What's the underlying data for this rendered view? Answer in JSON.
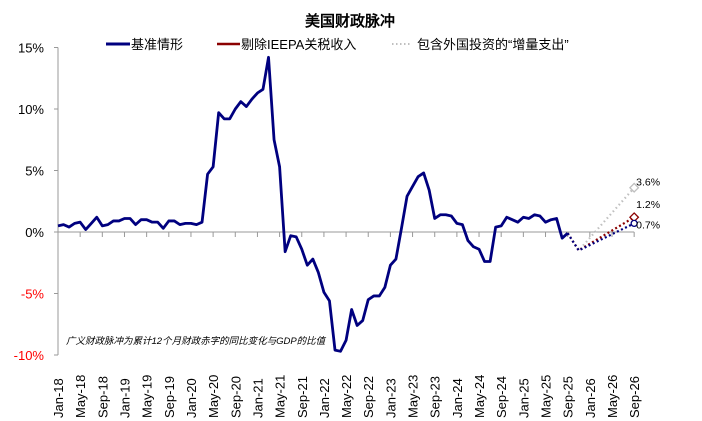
{
  "chart_data": {
    "type": "line",
    "title": "美国财政脉冲",
    "annotation": "广义财政脉冲为累计12个月财政赤字的同比变化与GDP的比值",
    "ylim": [
      -10,
      15
    ],
    "yticks": [
      15,
      10,
      5,
      0,
      -5,
      -10
    ],
    "ytick_labels": [
      "15%",
      "10%",
      "5%",
      "0%",
      "-5%",
      "-10%"
    ],
    "negative_tick_color": "#ff0000",
    "x_start": "Jan-18",
    "x_tick_labels": [
      "Jan-18",
      "May-18",
      "Sep-18",
      "Jan-19",
      "May-19",
      "Sep-19",
      "Jan-20",
      "May-20",
      "Sep-20",
      "Jan-21",
      "May-21",
      "Sep-21",
      "Jan-22",
      "May-22",
      "Sep-22",
      "Jan-23",
      "May-23",
      "Sep-23",
      "Jan-24",
      "May-24",
      "Sep-24",
      "Jan-25",
      "May-25",
      "Sep-25",
      "Jan-26",
      "May-26",
      "Sep-26"
    ],
    "grid": false,
    "legend_placement": "top",
    "history": [
      0.5,
      0.6,
      0.4,
      0.7,
      0.8,
      0.2,
      0.7,
      1.2,
      0.5,
      0.6,
      0.9,
      0.9,
      1.1,
      1.1,
      0.6,
      1.0,
      1.0,
      0.8,
      0.8,
      0.3,
      0.9,
      0.9,
      0.6,
      0.7,
      0.7,
      0.6,
      0.8,
      4.7,
      5.3,
      9.7,
      9.2,
      9.2,
      10.0,
      10.6,
      10.2,
      10.8,
      11.3,
      11.6,
      14.2,
      7.5,
      5.3,
      -1.6,
      -0.3,
      -0.4,
      -1.4,
      -2.7,
      -2.2,
      -3.3,
      -4.9,
      -5.6,
      -9.6,
      -9.7,
      -8.8,
      -6.3,
      -7.6,
      -7.2,
      -5.5,
      -5.2,
      -5.2,
      -4.5,
      -2.7,
      -2.2,
      0.3,
      2.9,
      3.7,
      4.5,
      4.8,
      3.4,
      1.1,
      1.4,
      1.4,
      1.3,
      0.7,
      0.6,
      -0.7,
      -1.2,
      -1.4,
      -2.4,
      -2.4,
      0.4,
      0.5,
      1.2,
      1.0,
      0.8,
      1.2,
      1.1,
      1.4,
      1.3,
      0.8,
      1.0,
      1.1,
      -0.5,
      -0.1
    ],
    "series": [
      {
        "name": "基准情形",
        "color": "#00007f",
        "trough": -1.5,
        "end_value": 0.7,
        "end_label": "0.7%",
        "marker": "circle"
      },
      {
        "name": "剔除IEEPA关税收入",
        "color": "#8b0000",
        "trough": -1.5,
        "end_value": 1.2,
        "end_label": "1.2%",
        "marker": "square"
      },
      {
        "name": "包含外国投资的“增量支出”",
        "color": "#bfbfbf",
        "trough": -1.5,
        "end_value": 3.6,
        "end_label": "3.6%",
        "marker": "diamond"
      }
    ],
    "projection_start": "Sep-25",
    "projection_trough": "Nov-25",
    "projection_end": "Sep-26"
  }
}
